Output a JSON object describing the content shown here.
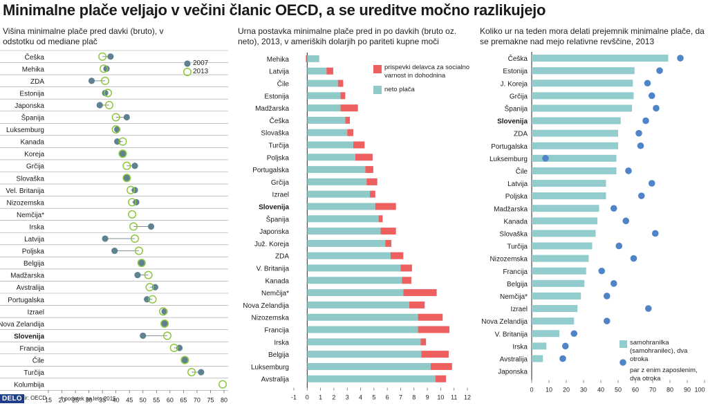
{
  "title": "Minimalne plače veljajo v večini članic OECD, a se ureditve močno razlikujejo",
  "footer": {
    "logo": "DELO",
    "source": "Vir: OECD",
    "footnote": "* podatek za leto 2015"
  },
  "colors": {
    "dot_2007": "#5f8190",
    "ring_2013": "#8dc63f",
    "net_pay": "#8fcac9",
    "contributions": "#ee5f5f",
    "unemployed": "#93cccc",
    "employed_pair": "#4f84c8",
    "grid": "#9a9a9a"
  },
  "chart_data": [
    {
      "type": "scatter",
      "subtitle": "Višina minimalne plače pred davki (bruto), v odstotku od mediane plač",
      "xlim": [
        15,
        80
      ],
      "xticks": [
        15,
        20,
        25,
        30,
        35,
        40,
        45,
        50,
        55,
        60,
        65,
        70,
        75,
        80
      ],
      "legend": [
        "2007",
        "2013"
      ],
      "categories": [
        "Češka",
        "Mehika",
        "ZDA",
        "Estonija",
        "Japonska",
        "Španija",
        "Luksemburg",
        "Kanada",
        "Koreja",
        "Grčija",
        "Slovaška",
        "Vel. Britanija",
        "Nizozemska",
        "Nemčija*",
        "Irska",
        "Latvija",
        "Poljska",
        "Belgija",
        "Madžarska",
        "Avstralija",
        "Portugalska",
        "Izrael",
        "Nova Zelandija",
        "Slovenija",
        "Francija",
        "Čile",
        "Turčija",
        "Kolumbija"
      ],
      "highlight": "Slovenija",
      "series": [
        {
          "name": "2007",
          "values": [
            38,
            36.5,
            31,
            36,
            34,
            44,
            40.5,
            40.5,
            42.5,
            47,
            44,
            47,
            47.5,
            null,
            53,
            36,
            39.5,
            49.5,
            48,
            54.5,
            51.5,
            58,
            58,
            50,
            63.5,
            65.5,
            71.5,
            null
          ]
        },
        {
          "name": "2013",
          "values": [
            35,
            35.5,
            36,
            37,
            37.5,
            40,
            40,
            42.5,
            42.5,
            44,
            44,
            45.5,
            46,
            46,
            46.5,
            47,
            48.5,
            49.5,
            52,
            52.5,
            53.5,
            57.5,
            58,
            59,
            61.5,
            65.5,
            68,
            79.5
          ]
        }
      ]
    },
    {
      "type": "bar",
      "stacked": true,
      "subtitle": "Urna postavka minimalne plače pred in po davkih (bruto oz. neto), 2013, v ameriških dolarjih po pariteti kupne moči",
      "xlim": [
        -1,
        12
      ],
      "xticks": [
        -1,
        0,
        1,
        2,
        3,
        4,
        5,
        6,
        7,
        8,
        9,
        10,
        11,
        12
      ],
      "legend": [
        "prispevki delavca za socialno varnost in dohodnina",
        "neto plača"
      ],
      "categories": [
        "Mehika",
        "Latvija",
        "Čile",
        "Estonija",
        "Madžarska",
        "Češka",
        "Slovaška",
        "Turčija",
        "Poljska",
        "Portugalska",
        "Grčija",
        "Izrael",
        "Slovenija",
        "Španija",
        "Japonska",
        "Juž. Koreja",
        "ZDA",
        "V. Britanija",
        "Kanada",
        "Nemčija*",
        "Nova Zelandija",
        "Nizozemska",
        "Francija",
        "Irska",
        "Belgija",
        "Luksemburg",
        "Avstralija"
      ],
      "highlight": "Slovenija",
      "series": [
        {
          "name": "neto plača",
          "values": [
            0.9,
            1.45,
            2.3,
            2.5,
            2.5,
            2.85,
            3.0,
            3.45,
            3.6,
            4.35,
            4.45,
            4.7,
            5.1,
            5.35,
            5.5,
            5.85,
            6.25,
            7.0,
            7.1,
            7.2,
            7.65,
            8.3,
            8.3,
            8.5,
            8.55,
            9.25,
            9.6
          ]
        },
        {
          "name": "prispevki delavca za socialno varnost in dohodnina",
          "values": [
            0.1,
            0.5,
            0.4,
            0.35,
            1.3,
            0.35,
            0.45,
            0.85,
            1.3,
            0.6,
            0.8,
            0.4,
            1.55,
            0.3,
            1.15,
            0.45,
            0.95,
            0.85,
            0.7,
            2.5,
            1.15,
            1.85,
            2.35,
            0.4,
            2.05,
            1.6,
            0.8
          ]
        }
      ]
    },
    {
      "type": "bar",
      "subtitle": "Koliko ur na teden mora delati prejemnik minimalne plače, da se premakne nad mejo relativne revščine, 2013",
      "xlim": [
        0,
        100
      ],
      "xticks": [
        0,
        10,
        20,
        30,
        40,
        50,
        60,
        70,
        80,
        90,
        100
      ],
      "legend": [
        "samohranilka (samohranilec), dva otroka",
        "par z enim zaposlenim, dva otroka"
      ],
      "categories": [
        "Češka",
        "Estonija",
        "J. Koreja",
        "Grčija",
        "Španija",
        "Slovenija",
        "ZDA",
        "Portugalska",
        "Luksemburg",
        "Čile",
        "Latvija",
        "Poljska",
        "Madžarska",
        "Kanada",
        "Slovaška",
        "Turčija",
        "Nizozemska",
        "Francija",
        "Belgija",
        "Nemčija*",
        "Izrael",
        "Nova Zelandija",
        "V. Britanija",
        "Irska",
        "Avstralija",
        "Japonska"
      ],
      "highlight": "Slovenija",
      "series": [
        {
          "name": "samohranilka (samohranilec), dva otroka",
          "values": [
            79,
            59.5,
            58.5,
            59,
            58,
            51.5,
            50,
            50,
            49,
            49,
            43,
            43,
            39,
            38,
            37,
            35,
            33,
            31.5,
            30.5,
            28.5,
            26.5,
            24.5,
            16,
            8.5,
            6.5,
            null
          ]
        },
        {
          "name": "par z enim zaposlenim, dva otroka",
          "values": [
            86,
            74,
            67,
            69.5,
            72,
            66,
            62,
            63,
            8,
            56,
            69.5,
            63.5,
            47.5,
            54.5,
            71.5,
            50.5,
            59,
            40.5,
            47.5,
            43.5,
            67.5,
            43.5,
            24.5,
            19.5,
            18,
            null
          ]
        }
      ]
    }
  ]
}
